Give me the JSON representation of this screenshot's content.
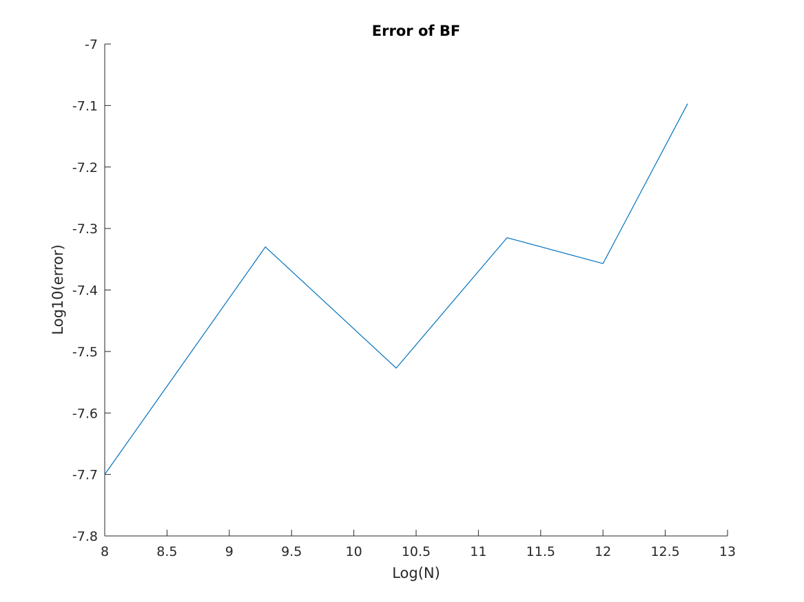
{
  "chart_data": {
    "type": "line",
    "title": "Error of BF",
    "xlabel": "Log(N)",
    "ylabel": "Log10(error)",
    "xlim": [
      8,
      13
    ],
    "ylim": [
      -7.8,
      -7
    ],
    "xticks": [
      "8",
      "8.5",
      "9",
      "9.5",
      "10",
      "10.5",
      "11",
      "11.5",
      "12",
      "12.5",
      "13"
    ],
    "yticks": [
      "-7",
      "-7.1",
      "-7.2",
      "-7.3",
      "-7.4",
      "-7.5",
      "-7.6",
      "-7.7",
      "-7.8"
    ],
    "grid": false,
    "series": [
      {
        "color": "#0072BD",
        "x": [
          8,
          9.29,
          10.34,
          11.23,
          12,
          12.68
        ],
        "y": [
          -7.7,
          -7.33,
          -7.527,
          -7.315,
          -7.357,
          -7.097
        ]
      }
    ]
  }
}
